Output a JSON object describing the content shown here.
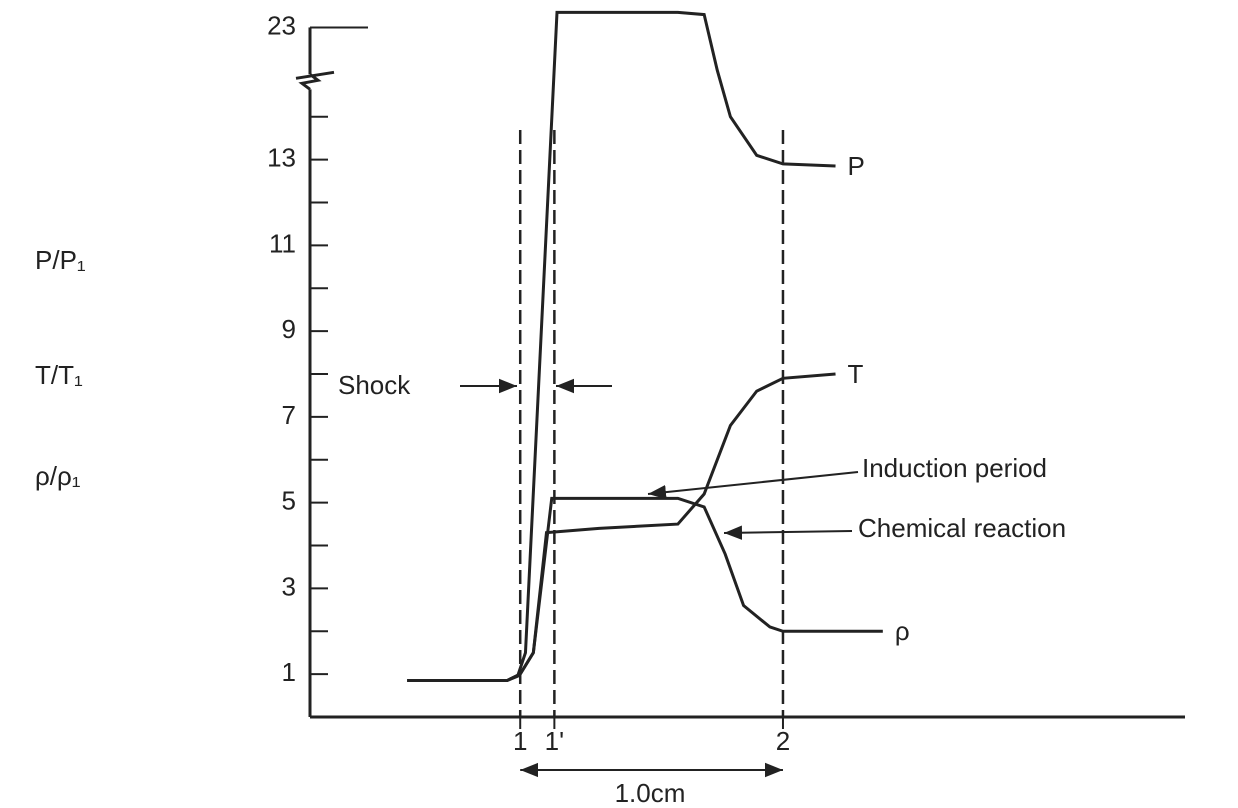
{
  "chart_data": {
    "type": "line",
    "y_labels": [
      "P/P₁",
      "T/T₁",
      "ρ/ρ₁"
    ],
    "xlim": [
      0.2,
      3.53
    ],
    "xticks": [
      1,
      {
        "value": 1.13,
        "label": "1'"
      },
      2
    ],
    "ylim": [
      0,
      23.5
    ],
    "y_break": [
      14.5,
      22
    ],
    "yticks": [
      1,
      3,
      5,
      7,
      9,
      11,
      13,
      23
    ],
    "minor_yticks": [
      2,
      4,
      6,
      8,
      10,
      12,
      14
    ],
    "reference_lines": [
      1,
      1.13,
      2
    ],
    "series": [
      {
        "name": "P",
        "color": "#222222",
        "x": [
          0.57,
          0.95,
          0.99,
          1.02,
          1.14,
          1.6,
          1.7,
          1.75,
          1.8,
          1.9,
          2.0,
          2.2
        ],
        "values": [
          0.85,
          0.85,
          0.95,
          1.5,
          23.35,
          23.35,
          23.3,
          22.0,
          14.0,
          13.1,
          12.9,
          12.85
        ]
      },
      {
        "name": "T",
        "color": "#222222",
        "x": [
          0.57,
          0.95,
          1.0,
          1.05,
          1.1,
          1.3,
          1.6,
          1.7,
          1.8,
          1.9,
          2.0,
          2.2
        ],
        "values": [
          0.85,
          0.85,
          1.0,
          1.5,
          4.3,
          4.4,
          4.5,
          5.2,
          6.8,
          7.6,
          7.9,
          8.0
        ]
      },
      {
        "name": "ρ",
        "color": "#222222",
        "x": [
          0.57,
          0.95,
          1.0,
          1.05,
          1.12,
          1.3,
          1.6,
          1.7,
          1.78,
          1.85,
          1.95,
          2.0,
          2.38
        ],
        "values": [
          0.85,
          0.85,
          1.0,
          1.5,
          5.1,
          5.1,
          5.1,
          4.9,
          3.8,
          2.6,
          2.1,
          2.0,
          2.0
        ]
      }
    ],
    "annotations": {
      "shock": "Shock",
      "induction": "Induction period",
      "reaction": "Chemical reaction",
      "scale": "1.0cm"
    }
  }
}
